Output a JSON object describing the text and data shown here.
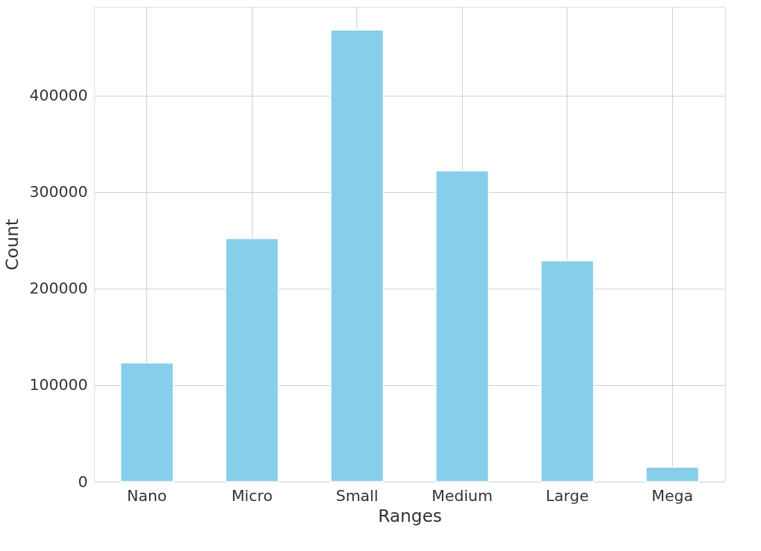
{
  "chart_data": {
    "type": "bar",
    "xlabel": "Ranges",
    "ylabel": "Count",
    "categories": [
      "Nano",
      "Micro",
      "Small",
      "Medium",
      "Large",
      "Mega"
    ],
    "values": [
      123000,
      252000,
      468000,
      322000,
      229000,
      15000
    ],
    "color": "#87ceeb",
    "ylim": [
      0,
      492000
    ],
    "yticks": [
      0,
      100000,
      200000,
      300000,
      400000
    ],
    "grid": true
  }
}
